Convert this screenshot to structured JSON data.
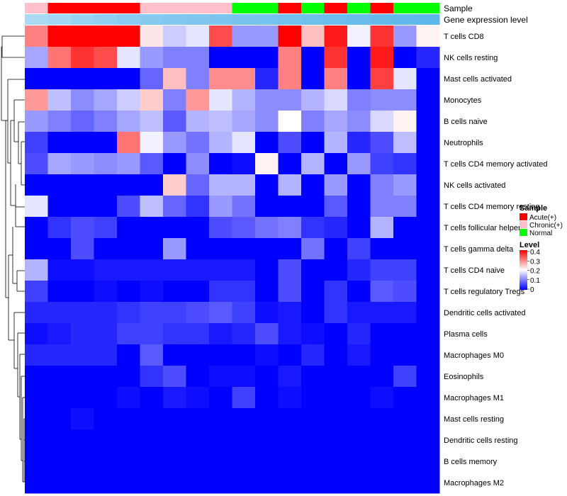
{
  "chart_data": {
    "type": "heatmap",
    "annotation_rows": [
      {
        "label": "Sample",
        "values": [
          "Chronic(+)",
          "Acute(+)",
          "Acute(+)",
          "Acute(+)",
          "Acute(+)",
          "Chronic(+)",
          "Chronic(+)",
          "Chronic(+)",
          "Chronic(+)",
          "Normal",
          "Normal",
          "Acute(+)",
          "Normal",
          "Acute(+)",
          "Normal",
          "Acute(+)",
          "Normal",
          "Normal"
        ]
      },
      {
        "label": "Gene expression level",
        "values": [
          0.5,
          0.55,
          0.6,
          0.65,
          0.7,
          0.72,
          0.74,
          0.76,
          0.78,
          0.8,
          0.82,
          0.84,
          0.86,
          0.88,
          0.9,
          0.92,
          0.94,
          0.96
        ]
      }
    ],
    "rows": [
      "T cells CD8",
      "NK cells resting",
      "Mast cells activated",
      "Monocytes",
      "B cells naive",
      "Neutrophils",
      "T cells CD4 memory activated",
      "NK cells activated",
      "T cells CD4 memory resting",
      "T cells follicular helper",
      "T cells gamma delta",
      "T cells CD4 naive",
      "T cells regulatory  Tregs",
      "Dendritic cells activated",
      "Plasma cells",
      "Macrophages M0",
      "Eosinophils",
      "Macrophages M1",
      "Mast cells resting",
      "Dendritic cells resting",
      "B cells memory",
      "Macrophages M2"
    ],
    "values": [
      [
        0.3,
        0.4,
        0.4,
        0.4,
        0.4,
        0.22,
        0.16,
        0.18,
        0.34,
        0.12,
        0.12,
        0.4,
        0.25,
        0.38,
        0.19,
        0.36,
        0.12,
        0.21
      ],
      [
        0.13,
        0.31,
        0.36,
        0.34,
        0.18,
        0.12,
        0.1,
        0.1,
        0.0,
        0.0,
        0.0,
        0.3,
        0.0,
        0.36,
        0.0,
        0.38,
        0.0,
        0.03
      ],
      [
        0.0,
        0.0,
        0.0,
        0.0,
        0.0,
        0.08,
        0.25,
        0.1,
        0.29,
        0.29,
        0.03,
        0.3,
        0.0,
        0.3,
        0.0,
        0.35,
        0.18,
        0.0
      ],
      [
        0.28,
        0.15,
        0.11,
        0.13,
        0.16,
        0.24,
        0.1,
        0.28,
        0.18,
        0.14,
        0.11,
        0.11,
        0.14,
        0.17,
        0.1,
        0.11,
        0.11,
        0.0
      ],
      [
        0.12,
        0.1,
        0.08,
        0.1,
        0.13,
        0.15,
        0.07,
        0.14,
        0.15,
        0.13,
        0.11,
        0.2,
        0.1,
        0.13,
        0.11,
        0.17,
        0.21,
        0.0
      ],
      [
        0.05,
        0.0,
        0.0,
        0.0,
        0.31,
        0.19,
        0.12,
        0.09,
        0.14,
        0.18,
        0.0,
        0.06,
        0.0,
        0.14,
        0.03,
        0.06,
        0.15,
        0.0
      ],
      [
        0.06,
        0.13,
        0.12,
        0.11,
        0.12,
        0.07,
        0.0,
        0.11,
        0.0,
        0.01,
        0.21,
        0.0,
        0.14,
        0.0,
        0.12,
        0.05,
        0.04,
        0.0
      ],
      [
        0.0,
        0.0,
        0.0,
        0.0,
        0.0,
        0.0,
        0.24,
        0.08,
        0.14,
        0.14,
        0.0,
        0.14,
        0.0,
        0.12,
        0.0,
        0.1,
        0.12,
        0.0
      ],
      [
        0.18,
        0.0,
        0.0,
        0.0,
        0.06,
        0.15,
        0.08,
        0.04,
        0.12,
        0.09,
        0.0,
        0.0,
        0.0,
        0.07,
        0.0,
        0.1,
        0.1,
        0.0
      ],
      [
        0.0,
        0.04,
        0.06,
        0.05,
        0.0,
        0.0,
        0.0,
        0.0,
        0.06,
        0.07,
        0.09,
        0.1,
        0.04,
        0.03,
        0.0,
        0.14,
        0.0,
        0.0
      ],
      [
        0.0,
        0.0,
        0.06,
        0.0,
        0.0,
        0.0,
        0.12,
        0.0,
        0.0,
        0.0,
        0.0,
        0.0,
        0.09,
        0.0,
        0.05,
        0.0,
        0.0,
        0.0
      ],
      [
        0.14,
        0.01,
        0.01,
        0.02,
        0.02,
        0.02,
        0.02,
        0.02,
        0.02,
        0.02,
        0.0,
        0.06,
        0.0,
        0.0,
        0.03,
        0.05,
        0.05,
        0.0
      ],
      [
        0.05,
        0.0,
        0.0,
        0.01,
        0.0,
        0.01,
        0.0,
        0.0,
        0.04,
        0.04,
        0.0,
        0.06,
        0.0,
        0.04,
        0.0,
        0.07,
        0.06,
        0.0
      ],
      [
        0.03,
        0.03,
        0.03,
        0.03,
        0.04,
        0.05,
        0.05,
        0.06,
        0.07,
        0.05,
        0.01,
        0.02,
        0.0,
        0.04,
        0.02,
        0.02,
        0.02,
        0.0
      ],
      [
        0.01,
        0.02,
        0.03,
        0.03,
        0.05,
        0.05,
        0.04,
        0.04,
        0.02,
        0.03,
        0.06,
        0.02,
        0.01,
        0.0,
        0.03,
        0.0,
        0.0,
        0.0
      ],
      [
        0.03,
        0.03,
        0.03,
        0.03,
        0.0,
        0.07,
        0.0,
        0.0,
        0.0,
        0.0,
        0.01,
        0.0,
        0.03,
        0.0,
        0.02,
        0.0,
        0.0,
        0.0
      ],
      [
        0.0,
        0.0,
        0.0,
        0.0,
        0.0,
        0.04,
        0.06,
        0.0,
        0.01,
        0.01,
        0.0,
        0.02,
        0.0,
        0.0,
        0.0,
        0.0,
        0.05,
        0.0
      ],
      [
        0.0,
        0.0,
        0.0,
        0.0,
        0.01,
        0.0,
        0.02,
        0.01,
        0.0,
        0.05,
        0.0,
        0.01,
        0.0,
        0.0,
        0.0,
        0.01,
        0.0,
        0.0
      ],
      [
        0.0,
        0.0,
        0.01,
        0.0,
        0.0,
        0.0,
        0.0,
        0.0,
        0.0,
        0.0,
        0.0,
        0.0,
        0.0,
        0.0,
        0.0,
        0.0,
        0.0,
        0.0
      ],
      [
        0.0,
        0.0,
        0.0,
        0.0,
        0.0,
        0.0,
        0.0,
        0.0,
        0.0,
        0.0,
        0.0,
        0.0,
        0.0,
        0.0,
        0.0,
        0.0,
        0.0,
        0.0
      ],
      [
        0.0,
        0.0,
        0.0,
        0.0,
        0.0,
        0.0,
        0.0,
        0.0,
        0.0,
        0.0,
        0.0,
        0.0,
        0.0,
        0.0,
        0.0,
        0.0,
        0.0,
        0.0
      ],
      [
        0.0,
        0.0,
        0.0,
        0.0,
        0.0,
        0.0,
        0.0,
        0.0,
        0.0,
        0.0,
        0.0,
        0.0,
        0.0,
        0.0,
        0.0,
        0.0,
        0.0,
        0.0
      ]
    ],
    "color_scale": {
      "min": 0,
      "mid": 0.2,
      "max": 0.4,
      "low_color": "#0000ff",
      "mid_color": "#ffffff",
      "high_color": "#ff0000"
    },
    "legend": {
      "sample_title": "Sample",
      "sample_items": [
        {
          "label": "Acute(+)",
          "color": "#ff0000"
        },
        {
          "label": "Chronic(+)",
          "color": "#ffc0cb"
        },
        {
          "label": "Normal",
          "color": "#00ff00"
        }
      ],
      "level_title": "Level",
      "level_ticks": [
        "0",
        "0.1",
        "0.2",
        "0.3",
        "0.4"
      ],
      "placement": "right"
    },
    "expression_color_low": "#ffffff",
    "expression_color_high": "#56b4e9",
    "row_dendrogram": true
  }
}
